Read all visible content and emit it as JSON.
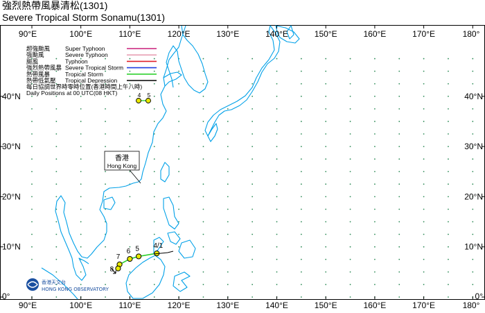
{
  "title": {
    "chinese": "強烈熱帶風暴清松(1301)",
    "english": "Severe Tropical Storm Sonamu(1301)"
  },
  "map": {
    "lon_range": [
      90,
      180
    ],
    "lat_range": [
      0,
      48
    ],
    "lon_ticks": [
      {
        "value": 90,
        "label": "90°E"
      },
      {
        "value": 100,
        "label": "100°E"
      },
      {
        "value": 110,
        "label": "110°E"
      },
      {
        "value": 120,
        "label": "120°E"
      },
      {
        "value": 130,
        "label": "130°E"
      },
      {
        "value": 140,
        "label": "140°E"
      },
      {
        "value": 150,
        "label": "150°E"
      },
      {
        "value": 160,
        "label": "160°E"
      },
      {
        "value": 170,
        "label": "170°E"
      },
      {
        "value": 180,
        "label": "180°"
      }
    ],
    "lat_ticks": [
      {
        "value": 0,
        "label": "0°"
      },
      {
        "value": 10,
        "label": "10°N"
      },
      {
        "value": 20,
        "label": "20°N"
      },
      {
        "value": 30,
        "label": "30°N"
      },
      {
        "value": 40,
        "label": "40°N"
      }
    ],
    "coast_color": "#00a0e8",
    "grid_dot_color": "#2e8b57"
  },
  "legend": {
    "items": [
      {
        "zh": "超強颱風",
        "en": "Super Typhoon",
        "color": "#c81e78"
      },
      {
        "zh": "強颱風",
        "en": "Severe Typhoon",
        "color": "#e8a0b4"
      },
      {
        "zh": "颱風",
        "en": "Typhoon",
        "color": "#e0202a"
      },
      {
        "zh": "強烈熱帶風暴",
        "en": "Severe Tropical Storm",
        "color": "#1f3ee0"
      },
      {
        "zh": "熱帶風暴",
        "en": "Tropical Storm",
        "color": "#2ed12e"
      },
      {
        "zh": "熱帶低氣壓",
        "en": "Tropical Depression",
        "color": "#000000"
      }
    ],
    "daily_zh": "每日協調世界時零時位置(香港時間上午八時)",
    "daily_en": "Daily Positions at 00 UTC(08 HKT)",
    "sample_days": [
      "4",
      "5"
    ]
  },
  "hong_kong": {
    "zh": "香港",
    "en": "Hong Kong"
  },
  "track": {
    "positions": [
      {
        "day": "4/1",
        "lon": 115.5,
        "lat": 8.7
      },
      {
        "day": "5",
        "lon": 111.8,
        "lat": 8.1
      },
      {
        "day": "6",
        "lon": 110.0,
        "lat": 7.6
      },
      {
        "day": "7",
        "lon": 107.9,
        "lat": 6.5
      },
      {
        "day": "8",
        "lon": 107.6,
        "lat": 5.7
      }
    ]
  },
  "observatory": {
    "zh": "香港天文台",
    "en": "HONG KONG OBSERVATORY"
  }
}
